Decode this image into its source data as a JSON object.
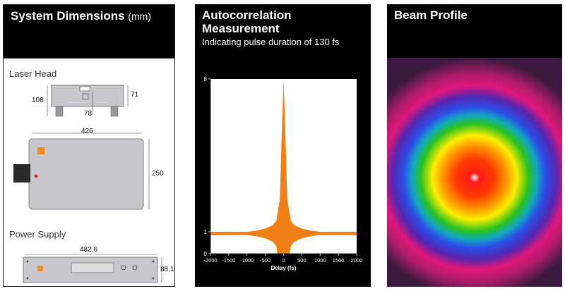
{
  "dimensions_panel": {
    "title": "System Dimensions",
    "unit": "(mm)",
    "laser_head_label": "Laser Head",
    "laser_head_dims": {
      "height": "108",
      "side": "71",
      "foot": "78",
      "width": "426",
      "depth": "250"
    },
    "power_supply_label": "Power Supply",
    "power_supply_dims": {
      "width": "482.6",
      "height": "88.1"
    }
  },
  "autocorr_panel": {
    "title_line1": "Autocorrelation",
    "title_line2": "Measurement",
    "subtitle": "Indicating pulse duration of 130 fs"
  },
  "beam_panel": {
    "title": "Beam Profile"
  },
  "colors": {
    "trace": "#f07f16",
    "panel_bg": "#000000",
    "device_gray": "#c8c8cc",
    "logo_orange": "#f08a24"
  },
  "chart_data": {
    "type": "line",
    "title": "",
    "xlabel": "Delay (fs)",
    "ylabel": "",
    "xlim": [
      -2000,
      2000
    ],
    "ylim": [
      0,
      8
    ],
    "xticks": [
      -2000,
      -1500,
      -1000,
      -500,
      0,
      500,
      1000,
      1500,
      2000
    ],
    "yticks": [
      0,
      1,
      8
    ],
    "grid": false,
    "series": [
      {
        "name": "",
        "x": [
          -2000,
          -1500,
          -1000,
          -750,
          -500,
          -300,
          -200,
          -100,
          -50,
          0,
          50,
          100,
          200,
          300,
          500,
          750,
          1000,
          1500,
          2000
        ],
        "y": [
          1,
          1,
          1,
          1.05,
          1.15,
          1.3,
          1.5,
          2.5,
          5.5,
          8,
          5.5,
          2.5,
          1.5,
          1.3,
          1.15,
          1.05,
          1,
          1,
          1
        ]
      }
    ]
  }
}
